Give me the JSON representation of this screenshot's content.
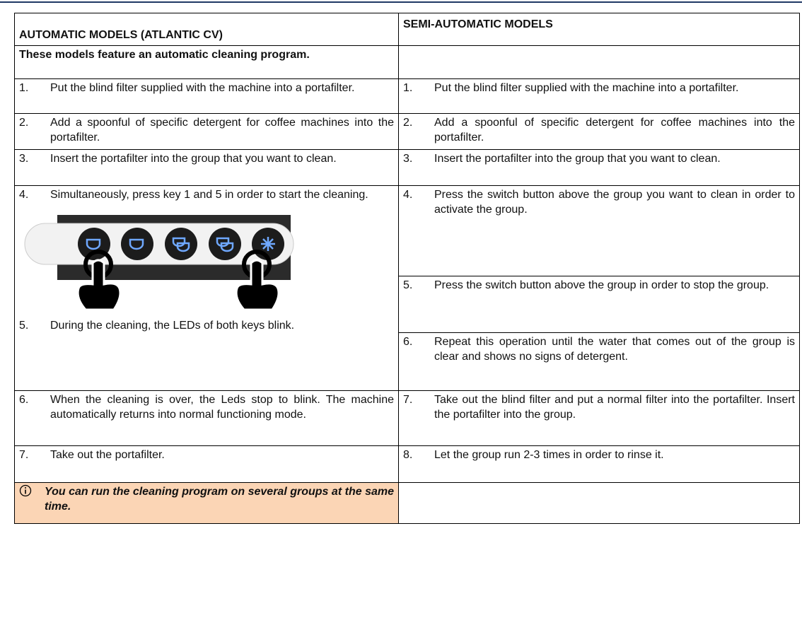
{
  "header": {
    "left": "AUTOMATIC MODELS (ATLANTIC CV)",
    "right": "SEMI-AUTOMATIC MODELS"
  },
  "intro": "These models feature an automatic cleaning program.",
  "automatic_steps": [
    {
      "number": "1.",
      "text": "Put the blind filter supplied with the machine into a portafilter."
    },
    {
      "number": "2.",
      "text": "Add a spoonful of specific detergent for coffee machines into the portafilter."
    },
    {
      "number": "3.",
      "text": "Insert the portafilter into the group that you want to clean."
    },
    {
      "number": "4.",
      "text": "Simultaneously, press key 1 and 5 in order to start the cleaning."
    },
    {
      "number": "5.",
      "text": "During the cleaning, the LEDs of both keys blink."
    },
    {
      "number": "6.",
      "text": "When the cleaning is over, the Leds stop to blink. The machine automatically returns into normal functioning mode."
    },
    {
      "number": "7.",
      "text": "Take out the portafilter."
    }
  ],
  "semi_automatic_steps": [
    {
      "number": "1.",
      "text": "Put the blind filter supplied with the machine into a portafilter."
    },
    {
      "number": "2.",
      "text": "Add a spoonful of specific detergent for coffee machines into the portafilter."
    },
    {
      "number": "3.",
      "text": "Insert the portafilter into the group that you want to clean."
    },
    {
      "number": "4.",
      "text": "Press the switch button above the group you want to clean in order to activate the group."
    },
    {
      "number": "5.",
      "text": "Press the switch button above the group in order to stop the group."
    },
    {
      "number": "6.",
      "text": "Repeat this operation until the water that comes out of the group is clear and shows no signs of detergent."
    },
    {
      "number": "7.",
      "text": "Take out the blind filter and put a normal filter into the portafilter. Insert the portafilter into the group."
    },
    {
      "number": "8.",
      "text": "Let the group run 2-3 times in order to rinse it."
    }
  ],
  "note": "You can run the cleaning program on several groups at the same time."
}
